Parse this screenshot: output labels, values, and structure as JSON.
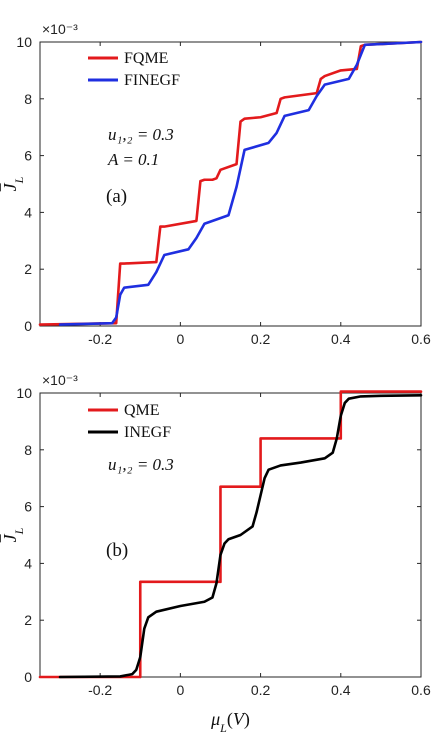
{
  "chart_data": [
    {
      "type": "line",
      "panel_label": "(a)",
      "exponent_label": "×10⁻³",
      "ylabel": "J̄_L",
      "xlabel": "",
      "xlim": [
        -0.35,
        0.6
      ],
      "ylim": [
        0,
        10
      ],
      "xticks": [
        "-0.2",
        "0",
        "0.2",
        "0.4",
        "0.6"
      ],
      "yticks": [
        "0",
        "2",
        "4",
        "6",
        "8",
        "10"
      ],
      "legend_position": "top-left",
      "annotations": [
        "u₁,₂ = 0.3",
        "A = 0.1"
      ],
      "colors": {
        "FQME": "#e31a1c",
        "FINEGF": "#1f2fe0"
      },
      "series": [
        {
          "name": "FQME",
          "x": [
            -0.35,
            -0.16,
            -0.15,
            -0.14,
            -0.06,
            -0.05,
            -0.04,
            0.04,
            0.05,
            0.06,
            0.08,
            0.09,
            0.1,
            0.14,
            0.15,
            0.16,
            0.2,
            0.24,
            0.25,
            0.26,
            0.34,
            0.35,
            0.36,
            0.4,
            0.44,
            0.45,
            0.46,
            0.6
          ],
          "y": [
            0.05,
            0.1,
            2.2,
            2.2,
            2.25,
            3.5,
            3.5,
            3.7,
            5.1,
            5.15,
            5.15,
            5.2,
            5.5,
            5.7,
            7.2,
            7.3,
            7.35,
            7.5,
            8.0,
            8.05,
            8.2,
            8.7,
            8.8,
            9.0,
            9.05,
            9.85,
            9.9,
            10.0
          ]
        },
        {
          "name": "FINEGF",
          "x": [
            -0.3,
            -0.17,
            -0.16,
            -0.15,
            -0.14,
            -0.08,
            -0.06,
            -0.04,
            0.02,
            0.04,
            0.06,
            0.12,
            0.14,
            0.16,
            0.22,
            0.24,
            0.26,
            0.32,
            0.34,
            0.36,
            0.42,
            0.44,
            0.46,
            0.6
          ],
          "y": [
            0.05,
            0.1,
            0.3,
            1.1,
            1.35,
            1.45,
            1.9,
            2.5,
            2.7,
            3.1,
            3.6,
            3.9,
            4.9,
            6.2,
            6.45,
            6.8,
            7.4,
            7.6,
            8.1,
            8.5,
            8.7,
            9.2,
            9.9,
            10.0
          ]
        }
      ]
    },
    {
      "type": "line",
      "panel_label": "(b)",
      "exponent_label": "×10⁻³",
      "ylabel": "J̄_L",
      "xlabel": "μ_L(V)",
      "xlim": [
        -0.35,
        0.6
      ],
      "ylim": [
        0,
        10
      ],
      "xticks": [
        "-0.2",
        "0",
        "0.2",
        "0.4",
        "0.6"
      ],
      "yticks": [
        "0",
        "2",
        "4",
        "6",
        "8",
        "10"
      ],
      "legend_position": "top-left",
      "annotations": [
        "u₁,₂ = 0.3"
      ],
      "colors": {
        "QME": "#e31a1c",
        "INEGF": "#000000"
      },
      "series": [
        {
          "name": "QME",
          "x": [
            -0.35,
            -0.1,
            -0.1,
            0.1,
            0.1,
            0.2,
            0.2,
            0.4,
            0.4,
            0.6
          ],
          "y": [
            0.0,
            0.0,
            3.35,
            3.35,
            6.7,
            6.7,
            8.4,
            8.4,
            10.05,
            10.05
          ]
        },
        {
          "name": "INEGF",
          "x": [
            -0.3,
            -0.15,
            -0.12,
            -0.11,
            -0.1,
            -0.09,
            -0.08,
            -0.06,
            0.0,
            0.06,
            0.08,
            0.09,
            0.1,
            0.11,
            0.12,
            0.15,
            0.18,
            0.19,
            0.2,
            0.21,
            0.22,
            0.25,
            0.3,
            0.36,
            0.38,
            0.39,
            0.4,
            0.41,
            0.42,
            0.45,
            0.5,
            0.6
          ],
          "y": [
            0.0,
            0.02,
            0.1,
            0.25,
            0.7,
            1.7,
            2.1,
            2.3,
            2.5,
            2.65,
            2.8,
            3.3,
            4.3,
            4.7,
            4.85,
            5.0,
            5.3,
            5.8,
            6.4,
            7.0,
            7.3,
            7.45,
            7.55,
            7.7,
            7.9,
            8.4,
            9.2,
            9.65,
            9.8,
            9.88,
            9.9,
            9.92
          ]
        }
      ]
    }
  ]
}
